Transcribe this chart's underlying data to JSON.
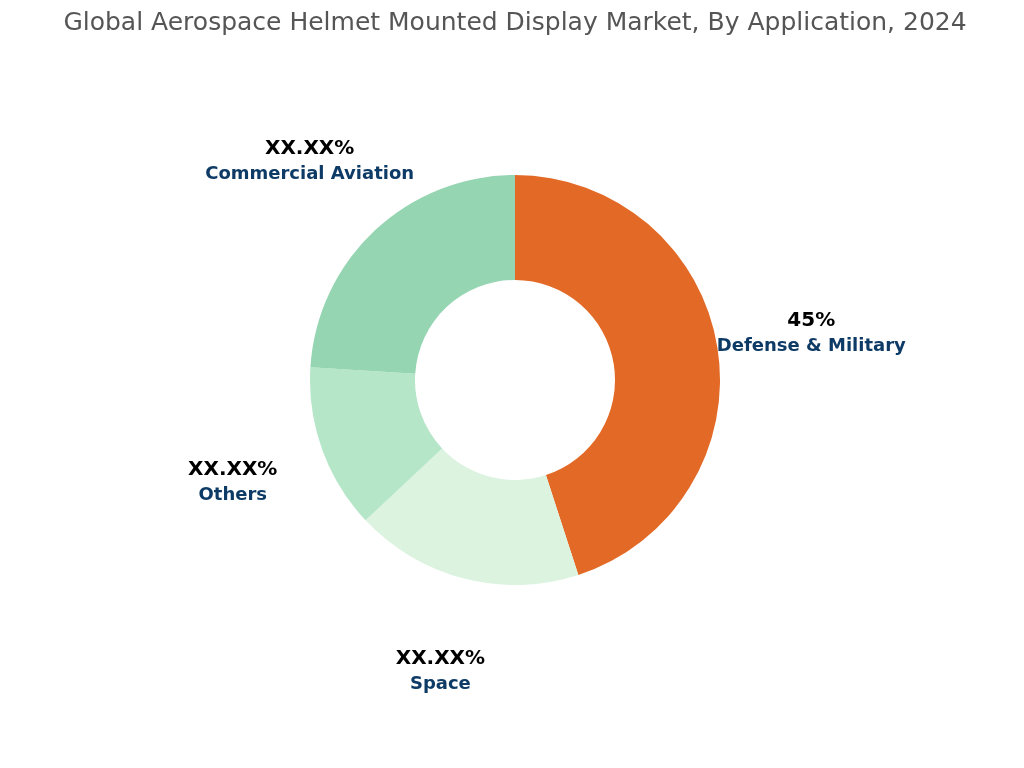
{
  "chart_data": {
    "type": "donut",
    "title": "Global Aerospace Helmet Mounted Display Market, By Application, 2024",
    "categories": [
      "Defense & Military",
      "Space",
      "Others",
      "Commercial Aviation"
    ],
    "values": [
      45,
      18,
      13,
      24
    ],
    "value_labels": [
      "45%",
      "XX.XX%",
      "XX.XX%",
      "XX.XX%"
    ],
    "colors": [
      "#e36a26",
      "#dcf3e0",
      "#b5e6c8",
      "#95d5b2"
    ],
    "legend": false
  }
}
